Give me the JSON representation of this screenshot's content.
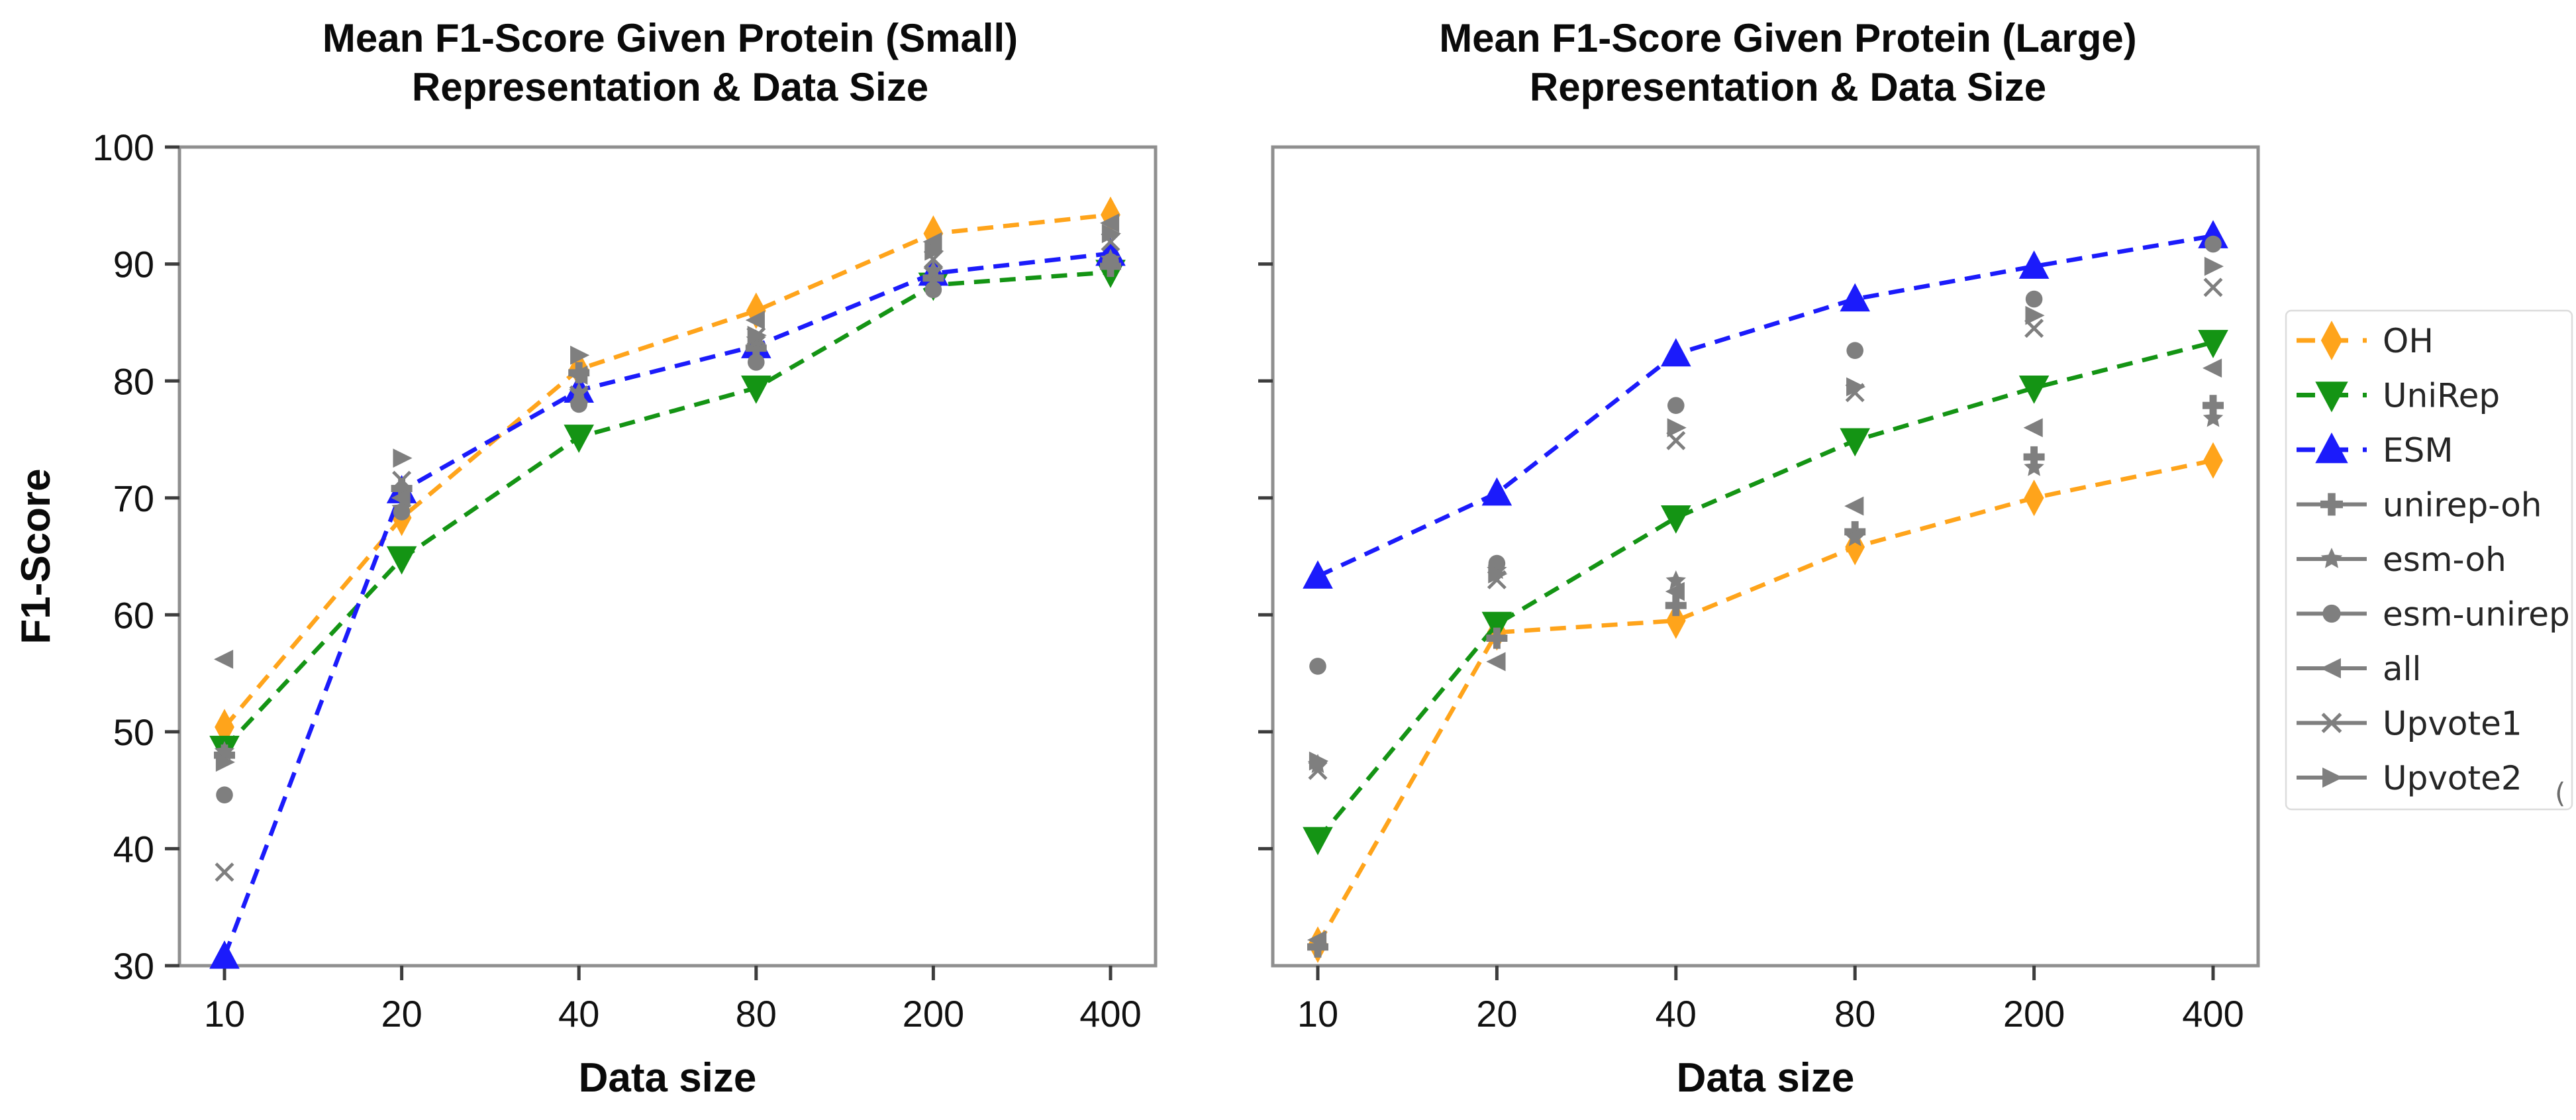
{
  "figure": {
    "background": "#ffffff",
    "frame_color": "#8f8f8f",
    "tick_color": "#3d3d3d",
    "scatter_color": "#7f7f7f"
  },
  "artifact_text": "(",
  "legend": {
    "position": "right",
    "entries": [
      {
        "label": "OH",
        "color": "#FFA41B",
        "marker": "diamond",
        "line": "dashed"
      },
      {
        "label": "UniRep",
        "color": "#149414",
        "marker": "triangle-down",
        "line": "dashed"
      },
      {
        "label": "ESM",
        "color": "#1B1BFB",
        "marker": "triangle-up",
        "line": "dashed"
      },
      {
        "label": "unirep-oh",
        "color": "#7f7f7f",
        "marker": "plus",
        "line": "solid"
      },
      {
        "label": "esm-oh",
        "color": "#7f7f7f",
        "marker": "star",
        "line": "solid"
      },
      {
        "label": "esm-unirep",
        "color": "#7f7f7f",
        "marker": "circle",
        "line": "solid"
      },
      {
        "label": "all",
        "color": "#7f7f7f",
        "marker": "triangle-left",
        "line": "solid"
      },
      {
        "label": "Upvote1",
        "color": "#7f7f7f",
        "marker": "x",
        "line": "solid"
      },
      {
        "label": "Upvote2",
        "color": "#7f7f7f",
        "marker": "triangle-right",
        "line": "solid"
      }
    ]
  },
  "chart_data": [
    {
      "type": "line",
      "title_lines": [
        "Mean F1-Score Given Protein (Small)",
        "Representation & Data Size"
      ],
      "xlabel": "Data size",
      "ylabel": "F1-Score",
      "x_values": [
        10,
        20,
        40,
        80,
        200,
        400
      ],
      "x_tick_labels": [
        "10",
        "20",
        "40",
        "80",
        "200",
        "400"
      ],
      "x_scale": "categorical",
      "ylim": [
        30,
        100
      ],
      "yticks": [
        100,
        90,
        80,
        70,
        60,
        50,
        40,
        30
      ],
      "ytick_labels": [
        "100",
        "90",
        "80",
        "70",
        "60",
        "50",
        "40",
        "30"
      ],
      "show_ytick_labels": true,
      "unlabeled_yticks": [],
      "grid": false,
      "series": [
        {
          "name": "OH",
          "color": "#FFA41B",
          "marker": "diamond",
          "line": "dashed",
          "values": [
            50.4,
            68.3,
            81.0,
            86.0,
            92.6,
            94.2
          ]
        },
        {
          "name": "UniRep",
          "color": "#149414",
          "marker": "triangle-down",
          "line": "dashed",
          "values": [
            48.6,
            64.8,
            75.2,
            79.4,
            88.2,
            89.3
          ]
        },
        {
          "name": "ESM",
          "color": "#1B1BFB",
          "marker": "triangle-up",
          "line": "dashed",
          "values": [
            30.8,
            70.6,
            79.2,
            83.0,
            89.2,
            90.9
          ]
        }
      ],
      "scatter_series": [
        {
          "name": "unirep-oh",
          "color": "#7f7f7f",
          "marker": "plus",
          "values": [
            48.0,
            70.8,
            80.7,
            82.8,
            88.8,
            89.8
          ]
        },
        {
          "name": "esm-oh",
          "color": "#7f7f7f",
          "marker": "star",
          "values": [
            48.3,
            69.1,
            79.0,
            83.5,
            89.4,
            90.4
          ]
        },
        {
          "name": "esm-unirep",
          "color": "#7f7f7f",
          "marker": "circle",
          "values": [
            44.6,
            68.8,
            78.0,
            81.6,
            87.8,
            90.2
          ]
        },
        {
          "name": "all",
          "color": "#7f7f7f",
          "marker": "triangle-left",
          "values": [
            56.2,
            70.0,
            80.5,
            85.2,
            91.9,
            93.5
          ]
        },
        {
          "name": "Upvote1",
          "color": "#7f7f7f",
          "marker": "x",
          "values": [
            38.0,
            71.5,
            78.8,
            83.8,
            90.4,
            91.9
          ]
        },
        {
          "name": "Upvote2",
          "color": "#7f7f7f",
          "marker": "triangle-right",
          "values": [
            47.4,
            73.4,
            82.2,
            83.9,
            91.1,
            92.6
          ]
        }
      ]
    },
    {
      "type": "line",
      "title_lines": [
        "Mean F1-Score Given Protein (Large)",
        "Representation & Data Size"
      ],
      "xlabel": "Data size",
      "ylabel": "",
      "x_values": [
        10,
        20,
        40,
        80,
        200,
        400
      ],
      "x_tick_labels": [
        "10",
        "20",
        "40",
        "80",
        "200",
        "400"
      ],
      "x_scale": "categorical",
      "ylim": [
        30,
        100
      ],
      "yticks": [],
      "ytick_labels": [],
      "show_ytick_labels": false,
      "unlabeled_yticks": [
        90,
        80,
        70,
        60,
        50,
        40
      ],
      "grid": false,
      "series": [
        {
          "name": "OH",
          "color": "#FFA41B",
          "marker": "diamond",
          "line": "dashed",
          "values": [
            31.8,
            58.5,
            59.5,
            65.8,
            70.0,
            73.2
          ]
        },
        {
          "name": "UniRep",
          "color": "#149414",
          "marker": "triangle-down",
          "line": "dashed",
          "values": [
            40.8,
            59.2,
            68.3,
            74.9,
            79.4,
            83.3
          ]
        },
        {
          "name": "ESM",
          "color": "#1B1BFB",
          "marker": "triangle-up",
          "line": "dashed",
          "values": [
            63.3,
            70.4,
            82.3,
            87.0,
            89.8,
            92.4
          ]
        }
      ],
      "scatter_series": [
        {
          "name": "unirep-oh",
          "color": "#7f7f7f",
          "marker": "plus",
          "values": [
            31.6,
            58.0,
            60.8,
            67.1,
            73.5,
            77.9
          ]
        },
        {
          "name": "esm-oh",
          "color": "#7f7f7f",
          "marker": "star",
          "values": [
            47.2,
            63.8,
            62.9,
            66.6,
            72.6,
            76.8
          ]
        },
        {
          "name": "esm-unirep",
          "color": "#7f7f7f",
          "marker": "circle",
          "values": [
            55.6,
            64.4,
            77.9,
            82.6,
            87.0,
            91.7
          ]
        },
        {
          "name": "all",
          "color": "#7f7f7f",
          "marker": "triangle-left",
          "values": [
            32.2,
            56.0,
            62.0,
            69.3,
            76.0,
            81.1
          ]
        },
        {
          "name": "Upvote1",
          "color": "#7f7f7f",
          "marker": "x",
          "values": [
            46.7,
            63.0,
            74.9,
            79.0,
            84.5,
            88.0
          ]
        },
        {
          "name": "Upvote2",
          "color": "#7f7f7f",
          "marker": "triangle-right",
          "values": [
            47.5,
            63.5,
            76.0,
            79.5,
            85.6,
            89.8
          ]
        }
      ]
    }
  ]
}
